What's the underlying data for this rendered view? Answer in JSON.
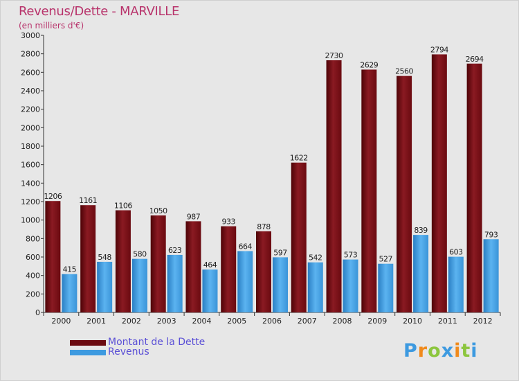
{
  "title": "Revenus/Dette - MARVILLE",
  "subtitle": "(en milliers d'€)",
  "chart_data": {
    "type": "bar",
    "categories": [
      "2000",
      "2001",
      "2002",
      "2003",
      "2004",
      "2005",
      "2006",
      "2007",
      "2008",
      "2009",
      "2010",
      "2011",
      "2012"
    ],
    "series": [
      {
        "name": "Montant de la Dette",
        "color": "#7a0c12",
        "values": [
          1206,
          1161,
          1106,
          1050,
          987,
          933,
          878,
          1622,
          2730,
          2629,
          2560,
          2794,
          2694
        ]
      },
      {
        "name": "Revenus",
        "color": "#3d9ae0",
        "values": [
          415,
          548,
          580,
          623,
          464,
          664,
          597,
          542,
          573,
          527,
          839,
          603,
          793
        ]
      }
    ],
    "ylim": [
      0,
      3000
    ],
    "yticks": [
      0,
      200,
      400,
      600,
      800,
      1000,
      1200,
      1400,
      1600,
      1800,
      2000,
      2200,
      2400,
      2600,
      2800,
      3000
    ],
    "grid": false,
    "legend": "bottom-left"
  },
  "legend": {
    "items": [
      {
        "label": "Montant de la Dette",
        "color": "#6b0a10"
      },
      {
        "label": "Revenus",
        "color": "#3d9ae0"
      }
    ]
  },
  "logo": {
    "letters": [
      "P",
      "r",
      "o",
      "x",
      "i",
      "t",
      "i"
    ],
    "colors": [
      "#3d9ae0",
      "#f08a1c",
      "#8cc63e",
      "#3d9ae0",
      "#f08a1c",
      "#8cc63e",
      "#3d9ae0"
    ]
  }
}
